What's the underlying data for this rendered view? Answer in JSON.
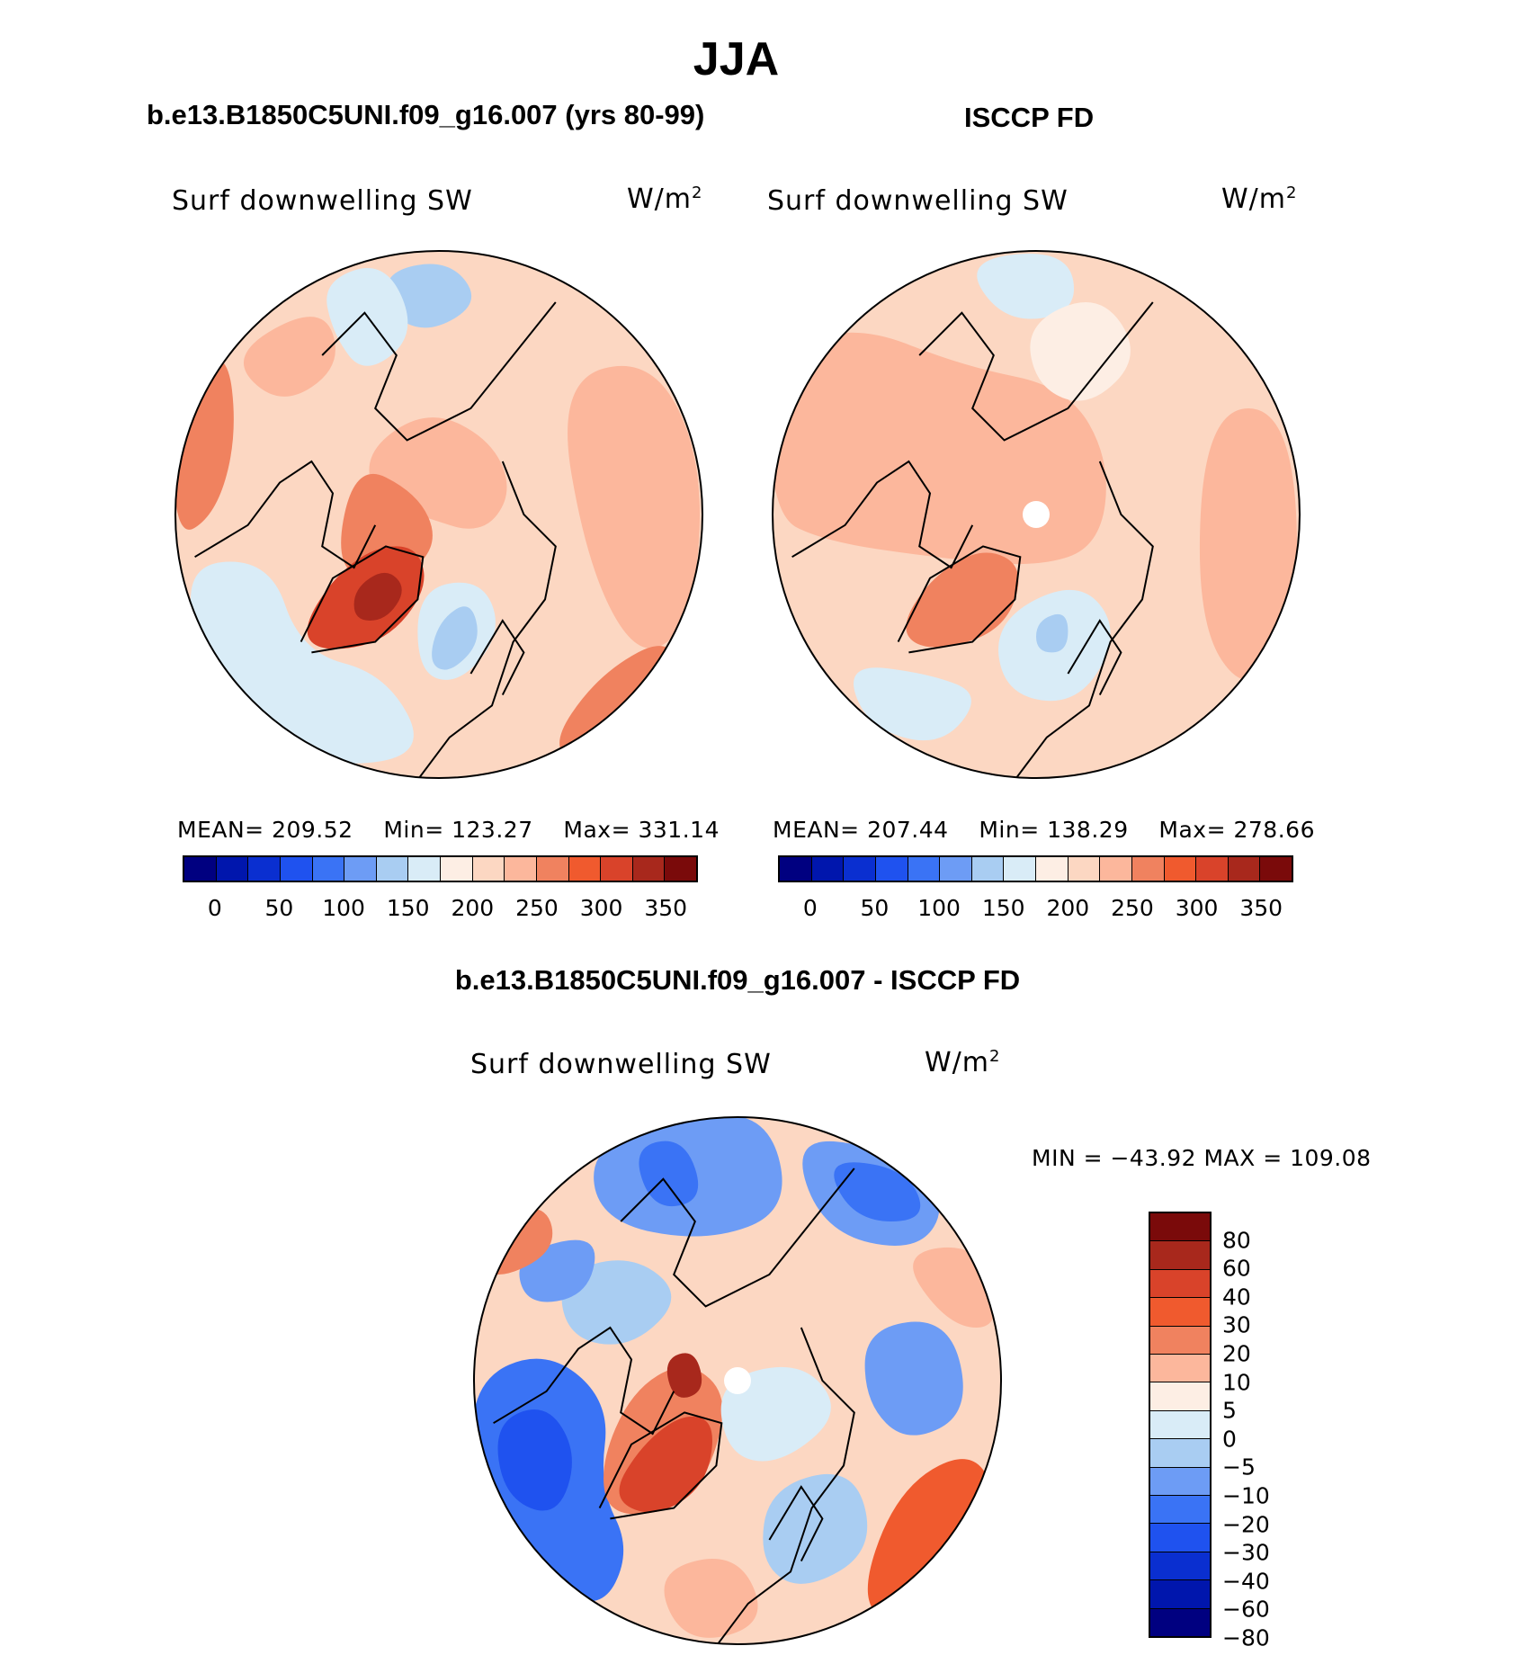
{
  "season": "JJA",
  "panels": [
    {
      "id": "model",
      "heading": "b.e13.B1850C5UNI.f09_g16.007 (yrs 80-99)",
      "variable": "Surf downwelling SW",
      "units_base": "W/m",
      "units_exp": "2",
      "stats": {
        "mean_label": "MEAN=",
        "mean": "209.52",
        "min_label": "Min=",
        "min": "123.27",
        "max_label": "Max=",
        "max": "331.14"
      },
      "base_color": "#fcd7c2",
      "blobs": [
        {
          "c": "#fcb79c",
          "pts": [
            [
              0.36,
              0.38
            ],
            [
              0.48,
              0.3
            ],
            [
              0.6,
              0.36
            ],
            [
              0.64,
              0.46
            ],
            [
              0.58,
              0.54
            ],
            [
              0.46,
              0.5
            ],
            [
              0.38,
              0.48
            ]
          ]
        },
        {
          "c": "#f0825f",
          "pts": [
            [
              0.0,
              0.25
            ],
            [
              0.1,
              0.18
            ],
            [
              0.12,
              0.35
            ],
            [
              0.08,
              0.5
            ],
            [
              0.0,
              0.55
            ]
          ]
        },
        {
          "c": "#fcb79c",
          "pts": [
            [
              0.72,
              0.25
            ],
            [
              0.9,
              0.2
            ],
            [
              1.0,
              0.4
            ],
            [
              0.98,
              0.7
            ],
            [
              0.88,
              0.78
            ],
            [
              0.78,
              0.6
            ]
          ]
        },
        {
          "c": "#f0825f",
          "pts": [
            [
              0.8,
              0.8
            ],
            [
              0.95,
              0.72
            ],
            [
              0.97,
              0.9
            ],
            [
              0.82,
              0.98
            ],
            [
              0.7,
              0.95
            ]
          ]
        },
        {
          "c": "#f0825f",
          "pts": [
            [
              0.34,
              0.4
            ],
            [
              0.46,
              0.46
            ],
            [
              0.5,
              0.55
            ],
            [
              0.44,
              0.62
            ],
            [
              0.3,
              0.62
            ]
          ]
        },
        {
          "c": "#d9432a",
          "pts": [
            [
              0.24,
              0.72
            ],
            [
              0.3,
              0.62
            ],
            [
              0.38,
              0.56
            ],
            [
              0.46,
              0.56
            ],
            [
              0.48,
              0.64
            ],
            [
              0.4,
              0.74
            ],
            [
              0.28,
              0.76
            ]
          ]
        },
        {
          "c": "#a8281c",
          "pts": [
            [
              0.34,
              0.64
            ],
            [
              0.4,
              0.6
            ],
            [
              0.44,
              0.64
            ],
            [
              0.4,
              0.7
            ],
            [
              0.34,
              0.7
            ]
          ]
        },
        {
          "c": "#d9ecf7",
          "pts": [
            [
              0.0,
              0.6
            ],
            [
              0.18,
              0.58
            ],
            [
              0.24,
              0.76
            ],
            [
              0.4,
              0.8
            ],
            [
              0.48,
              0.95
            ],
            [
              0.3,
              0.98
            ],
            [
              0.1,
              0.9
            ]
          ]
        },
        {
          "c": "#d9ecf7",
          "pts": [
            [
              0.46,
              0.64
            ],
            [
              0.58,
              0.62
            ],
            [
              0.62,
              0.72
            ],
            [
              0.54,
              0.82
            ],
            [
              0.46,
              0.8
            ]
          ]
        },
        {
          "c": "#a9cdf2",
          "pts": [
            [
              0.5,
              0.7
            ],
            [
              0.56,
              0.66
            ],
            [
              0.58,
              0.74
            ],
            [
              0.52,
              0.8
            ],
            [
              0.48,
              0.78
            ]
          ]
        },
        {
          "c": "#a9cdf2",
          "pts": [
            [
              0.4,
              0.04
            ],
            [
              0.52,
              0.02
            ],
            [
              0.58,
              0.1
            ],
            [
              0.48,
              0.16
            ],
            [
              0.4,
              0.12
            ]
          ]
        },
        {
          "c": "#d9ecf7",
          "pts": [
            [
              0.28,
              0.06
            ],
            [
              0.4,
              0.02
            ],
            [
              0.46,
              0.16
            ],
            [
              0.36,
              0.24
            ],
            [
              0.3,
              0.16
            ]
          ]
        },
        {
          "c": "#fcb79c",
          "pts": [
            [
              0.1,
              0.2
            ],
            [
              0.28,
              0.1
            ],
            [
              0.32,
              0.22
            ],
            [
              0.2,
              0.3
            ]
          ]
        }
      ],
      "pole_hole": false
    },
    {
      "id": "obs",
      "heading": "ISCCP FD",
      "variable": "Surf downwelling SW",
      "units_base": "W/m",
      "units_exp": "2",
      "stats": {
        "mean_label": "MEAN=",
        "mean": "207.44",
        "min_label": "Min=",
        "min": "138.29",
        "max_label": "Max=",
        "max": "278.66"
      },
      "base_color": "#fcd7c2",
      "blobs": [
        {
          "c": "#fcb79c",
          "pts": [
            [
              0.0,
              0.2
            ],
            [
              0.16,
              0.14
            ],
            [
              0.36,
              0.22
            ],
            [
              0.56,
              0.26
            ],
            [
              0.64,
              0.4
            ],
            [
              0.62,
              0.56
            ],
            [
              0.5,
              0.6
            ],
            [
              0.3,
              0.58
            ],
            [
              0.1,
              0.55
            ],
            [
              0.0,
              0.5
            ]
          ]
        },
        {
          "c": "#fcb79c",
          "pts": [
            [
              0.82,
              0.3
            ],
            [
              0.98,
              0.3
            ],
            [
              1.0,
              0.7
            ],
            [
              0.9,
              0.85
            ],
            [
              0.8,
              0.7
            ]
          ]
        },
        {
          "c": "#f0825f",
          "pts": [
            [
              0.24,
              0.72
            ],
            [
              0.3,
              0.62
            ],
            [
              0.4,
              0.56
            ],
            [
              0.48,
              0.6
            ],
            [
              0.44,
              0.72
            ],
            [
              0.3,
              0.76
            ]
          ]
        },
        {
          "c": "#d9ecf7",
          "pts": [
            [
              0.14,
              0.78
            ],
            [
              0.3,
              0.8
            ],
            [
              0.4,
              0.84
            ],
            [
              0.32,
              0.94
            ],
            [
              0.18,
              0.9
            ]
          ]
        },
        {
          "c": "#d9ecf7",
          "pts": [
            [
              0.42,
              0.7
            ],
            [
              0.58,
              0.62
            ],
            [
              0.66,
              0.72
            ],
            [
              0.58,
              0.86
            ],
            [
              0.44,
              0.84
            ]
          ]
        },
        {
          "c": "#a9cdf2",
          "pts": [
            [
              0.5,
              0.7
            ],
            [
              0.56,
              0.68
            ],
            [
              0.56,
              0.76
            ],
            [
              0.5,
              0.76
            ]
          ]
        },
        {
          "c": "#d9ecf7",
          "pts": [
            [
              0.36,
              0.02
            ],
            [
              0.56,
              0.0
            ],
            [
              0.58,
              0.12
            ],
            [
              0.44,
              0.14
            ]
          ]
        },
        {
          "c": "#fdeee4",
          "pts": [
            [
              0.48,
              0.14
            ],
            [
              0.62,
              0.08
            ],
            [
              0.7,
              0.2
            ],
            [
              0.6,
              0.3
            ],
            [
              0.5,
              0.26
            ]
          ]
        }
      ],
      "pole_hole": true
    }
  ],
  "abs_colorbar": {
    "colors": [
      "#000080",
      "#0016ad",
      "#0a2fd0",
      "#1f52ef",
      "#3a73f5",
      "#6d9cf5",
      "#a9cdf2",
      "#d9ecf7",
      "#fdeee4",
      "#fcd7c2",
      "#fcb79c",
      "#f0825f",
      "#f05a2e",
      "#d9432a",
      "#a8281c",
      "#7a0a0a"
    ],
    "ticks": [
      "0",
      "50",
      "100",
      "150",
      "200",
      "250",
      "300",
      "350"
    ]
  },
  "diff_panel": {
    "heading": "b.e13.B1850C5UNI.f09_g16.007 - ISCCP FD",
    "variable": "Surf downwelling SW",
    "units_base": "W/m",
    "units_exp": "2",
    "minmax": "MIN = −43.92 MAX = 109.08",
    "base_color": "#fcd7c2",
    "blobs": [
      {
        "c": "#6d9cf5",
        "pts": [
          [
            0.22,
            0.06
          ],
          [
            0.4,
            0.0
          ],
          [
            0.56,
            0.0
          ],
          [
            0.6,
            0.18
          ],
          [
            0.44,
            0.24
          ],
          [
            0.24,
            0.2
          ]
        ]
      },
      {
        "c": "#3a73f5",
        "pts": [
          [
            0.3,
            0.06
          ],
          [
            0.4,
            0.04
          ],
          [
            0.44,
            0.16
          ],
          [
            0.34,
            0.18
          ]
        ]
      },
      {
        "c": "#6d9cf5",
        "pts": [
          [
            0.6,
            0.04
          ],
          [
            0.78,
            0.06
          ],
          [
            0.9,
            0.16
          ],
          [
            0.84,
            0.26
          ],
          [
            0.66,
            0.22
          ]
        ]
      },
      {
        "c": "#3a73f5",
        "pts": [
          [
            0.66,
            0.08
          ],
          [
            0.82,
            0.1
          ],
          [
            0.86,
            0.2
          ],
          [
            0.72,
            0.2
          ]
        ]
      },
      {
        "c": "#3a73f5",
        "pts": [
          [
            0.0,
            0.5
          ],
          [
            0.14,
            0.44
          ],
          [
            0.26,
            0.54
          ],
          [
            0.24,
            0.7
          ],
          [
            0.3,
            0.82
          ],
          [
            0.24,
            0.94
          ],
          [
            0.1,
            0.86
          ],
          [
            0.0,
            0.7
          ]
        ]
      },
      {
        "c": "#1f52ef",
        "pts": [
          [
            0.04,
            0.58
          ],
          [
            0.14,
            0.54
          ],
          [
            0.2,
            0.64
          ],
          [
            0.16,
            0.76
          ],
          [
            0.06,
            0.72
          ]
        ]
      },
      {
        "c": "#a9cdf2",
        "pts": [
          [
            0.16,
            0.3
          ],
          [
            0.3,
            0.26
          ],
          [
            0.4,
            0.34
          ],
          [
            0.3,
            0.44
          ],
          [
            0.18,
            0.42
          ]
        ]
      },
      {
        "c": "#6d9cf5",
        "pts": [
          [
            0.08,
            0.26
          ],
          [
            0.24,
            0.22
          ],
          [
            0.22,
            0.34
          ],
          [
            0.1,
            0.36
          ]
        ]
      },
      {
        "c": "#f0825f",
        "pts": [
          [
            0.3,
            0.52
          ],
          [
            0.4,
            0.46
          ],
          [
            0.48,
            0.52
          ],
          [
            0.46,
            0.64
          ],
          [
            0.4,
            0.74
          ],
          [
            0.26,
            0.76
          ],
          [
            0.24,
            0.66
          ]
        ]
      },
      {
        "c": "#d9432a",
        "pts": [
          [
            0.26,
            0.72
          ],
          [
            0.32,
            0.62
          ],
          [
            0.4,
            0.56
          ],
          [
            0.46,
            0.58
          ],
          [
            0.44,
            0.7
          ],
          [
            0.34,
            0.76
          ]
        ]
      },
      {
        "c": "#a8281c",
        "pts": [
          [
            0.36,
            0.46
          ],
          [
            0.42,
            0.44
          ],
          [
            0.44,
            0.52
          ],
          [
            0.38,
            0.54
          ]
        ]
      },
      {
        "c": "#d9ecf7",
        "pts": [
          [
            0.46,
            0.5
          ],
          [
            0.62,
            0.46
          ],
          [
            0.7,
            0.56
          ],
          [
            0.58,
            0.66
          ],
          [
            0.48,
            0.64
          ]
        ]
      },
      {
        "c": "#a9cdf2",
        "pts": [
          [
            0.56,
            0.7
          ],
          [
            0.72,
            0.66
          ],
          [
            0.76,
            0.82
          ],
          [
            0.62,
            0.9
          ],
          [
            0.54,
            0.84
          ]
        ]
      },
      {
        "c": "#6d9cf5",
        "pts": [
          [
            0.74,
            0.4
          ],
          [
            0.9,
            0.38
          ],
          [
            0.94,
            0.56
          ],
          [
            0.82,
            0.62
          ],
          [
            0.74,
            0.54
          ]
        ]
      },
      {
        "c": "#f05a2e",
        "pts": [
          [
            0.8,
            0.7
          ],
          [
            0.96,
            0.62
          ],
          [
            1.0,
            0.8
          ],
          [
            0.86,
            0.96
          ],
          [
            0.72,
            0.94
          ]
        ]
      },
      {
        "c": "#fcb79c",
        "pts": [
          [
            0.8,
            0.26
          ],
          [
            0.96,
            0.24
          ],
          [
            1.0,
            0.4
          ],
          [
            0.9,
            0.4
          ]
        ]
      },
      {
        "c": "#f0825f",
        "pts": [
          [
            0.0,
            0.2
          ],
          [
            0.14,
            0.16
          ],
          [
            0.16,
            0.26
          ],
          [
            0.02,
            0.32
          ]
        ]
      },
      {
        "c": "#fcb79c",
        "pts": [
          [
            0.34,
            0.86
          ],
          [
            0.5,
            0.82
          ],
          [
            0.56,
            0.96
          ],
          [
            0.4,
            1.0
          ]
        ]
      }
    ],
    "pole_hole": true
  },
  "diff_colorbar": {
    "colors": [
      "#7a0a0a",
      "#a8281c",
      "#d9432a",
      "#f05a2e",
      "#f0825f",
      "#fcb79c",
      "#fdeee4",
      "#d9ecf7",
      "#a9cdf2",
      "#6d9cf5",
      "#3a73f5",
      "#1f52ef",
      "#0a2fd0",
      "#0016ad",
      "#000080"
    ],
    "ticks": [
      "80",
      "60",
      "40",
      "30",
      "20",
      "10",
      "5",
      "0",
      "−5",
      "−10",
      "−20",
      "−30",
      "−40",
      "−60",
      "−80"
    ]
  }
}
